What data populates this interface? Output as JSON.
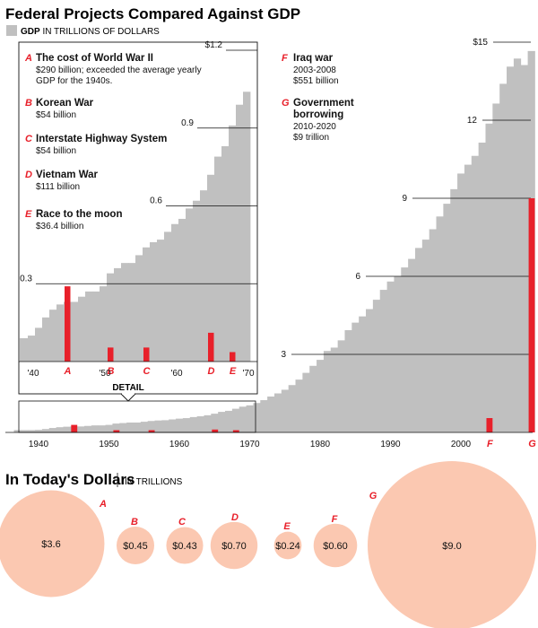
{
  "chart_data": {
    "type": "bar",
    "title": "Federal Projects Compared Against GDP",
    "legend": {
      "swatch_label": "GDP",
      "label_rest": "IN TRILLIONS OF DOLLARS"
    },
    "gdp_series": {
      "name": "GDP (trillions of dollars)",
      "start_year": 1937,
      "values": [
        0.09,
        0.09,
        0.09,
        0.1,
        0.13,
        0.17,
        0.2,
        0.22,
        0.23,
        0.23,
        0.25,
        0.27,
        0.27,
        0.29,
        0.34,
        0.36,
        0.38,
        0.38,
        0.41,
        0.44,
        0.46,
        0.47,
        0.5,
        0.53,
        0.55,
        0.59,
        0.62,
        0.66,
        0.72,
        0.79,
        0.83,
        0.91,
        0.99,
        1.04,
        1.13,
        1.24,
        1.38,
        1.5,
        1.64,
        1.82,
        2.03,
        2.29,
        2.56,
        2.79,
        3.13,
        3.26,
        3.54,
        3.93,
        4.22,
        4.46,
        4.74,
        5.1,
        5.48,
        5.8,
        5.99,
        6.34,
        6.67,
        7.09,
        7.41,
        7.81,
        8.3,
        8.79,
        9.35,
        9.95,
        10.29,
        10.63,
        11.14,
        11.87,
        12.64,
        13.4,
        14.06,
        14.37,
        14.12,
        14.66
      ]
    },
    "projects": [
      {
        "letter": "A",
        "year": 1945,
        "value_trillions": 0.29,
        "title": "The cost of World War II",
        "lines": [
          "$290 billion; exceeded the average yearly",
          "GDP for the 1940s."
        ],
        "todays_dollars": 3.6,
        "todays_label": "$3.6"
      },
      {
        "letter": "B",
        "year": 1951,
        "value_trillions": 0.054,
        "title": "Korean War",
        "lines": [
          "$54 billion"
        ],
        "todays_dollars": 0.45,
        "todays_label": "$0.45"
      },
      {
        "letter": "C",
        "year": 1956,
        "value_trillions": 0.054,
        "title": "Interstate Highway System",
        "lines": [
          "$54 billion"
        ],
        "todays_dollars": 0.43,
        "todays_label": "$0.43"
      },
      {
        "letter": "D",
        "year": 1965,
        "value_trillions": 0.111,
        "title": "Vietnam War",
        "lines": [
          "$111 billion"
        ],
        "todays_dollars": 0.7,
        "todays_label": "$0.70"
      },
      {
        "letter": "E",
        "year": 1968,
        "value_trillions": 0.0364,
        "title": "Race to the moon",
        "lines": [
          "$36.4 billion"
        ],
        "todays_dollars": 0.24,
        "todays_label": "$0.24"
      },
      {
        "letter": "F",
        "year": 2004,
        "value_trillions": 0.551,
        "title": "Iraq war",
        "lines": [
          "2003-2008",
          "$551 billion"
        ],
        "todays_dollars": 0.6,
        "todays_label": "$0.60"
      },
      {
        "letter": "G",
        "year": 2010,
        "value_trillions": 9.0,
        "title": "Government borrowing",
        "lines": [
          "2010-2020",
          "$9 trillion"
        ],
        "todays_dollars": 9.0,
        "todays_label": "$9.0"
      }
    ],
    "main_y_ticks": [
      {
        "value": 3,
        "label": "3"
      },
      {
        "value": 6,
        "label": "6"
      },
      {
        "value": 9,
        "label": "9"
      },
      {
        "value": 12,
        "label": "12"
      },
      {
        "value": 15,
        "label": "$15"
      }
    ],
    "main_x_ticks": [
      "1940",
      "1950",
      "1960",
      "1970",
      "1980",
      "1990",
      "2000"
    ],
    "detail_label": "DETAIL",
    "detail_y_ticks": [
      {
        "value": 0.3,
        "label": "0.3"
      },
      {
        "value": 0.6,
        "label": "0.6"
      },
      {
        "value": 0.9,
        "label": "0.9"
      },
      {
        "value": 1.2,
        "label": "$1.2"
      }
    ],
    "detail_x_ticks": [
      "'40",
      "'50",
      "'60",
      "'70"
    ],
    "bubbles_title": "In Today's Dollars",
    "bubbles_subtitle": "IN TRILLIONS",
    "colors": {
      "gdp": "#c0c0c0",
      "project": "#e8202a",
      "bubble": "#fbc8b1",
      "axis": "#111111"
    }
  }
}
